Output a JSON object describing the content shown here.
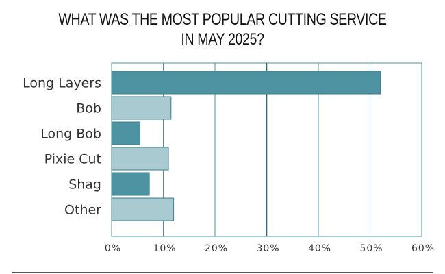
{
  "chart_data": {
    "type": "bar",
    "orientation": "horizontal",
    "title": "WHAT WAS THE MOST POPULAR CUTTING SERVICE IN MAY 2025?",
    "title_lines": [
      "WHAT WAS THE MOST POPULAR CUTTING SERVICE",
      "IN MAY 2025?"
    ],
    "categories": [
      "Long Layers",
      "Bob",
      "Long Bob",
      "Pixie Cut",
      "Shag",
      "Other"
    ],
    "values": [
      52,
      11.5,
      5.5,
      11,
      7.3,
      12
    ],
    "value_unit": "%",
    "xlim": [
      0,
      60
    ],
    "xticks": [
      0,
      10,
      20,
      30,
      40,
      50,
      60
    ],
    "xtick_labels": [
      "0%",
      "10%",
      "20%",
      "30%",
      "40%",
      "50%",
      "60%"
    ],
    "xlabel": "",
    "ylabel": "",
    "grid": true,
    "legend": "none",
    "colors": {
      "dark_bar": "#4d93a1",
      "light_bar": "#a9cad0",
      "bar_border": "#3f7f8c",
      "grid": "#4d93a1",
      "emphasis_grid": "#2d6b78"
    },
    "bar_style": [
      "dark",
      "light",
      "dark",
      "light",
      "dark",
      "light"
    ]
  }
}
